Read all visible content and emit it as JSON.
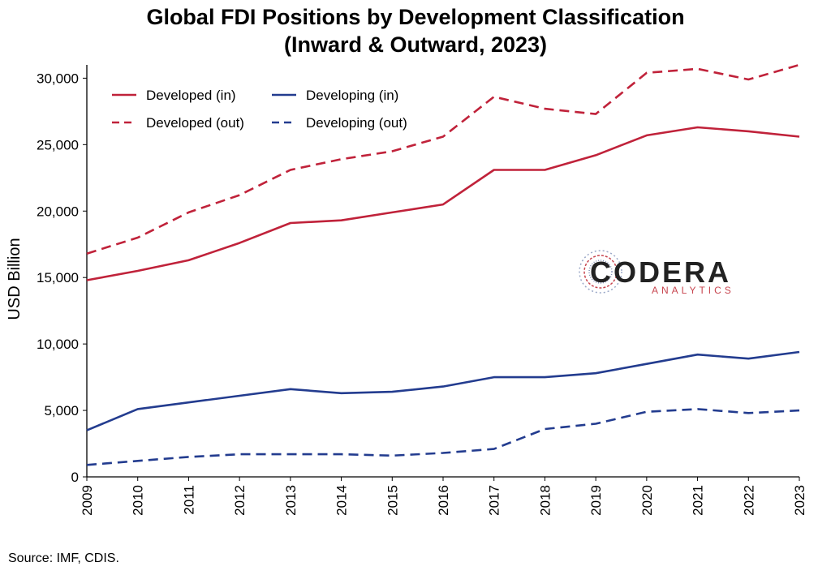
{
  "chart_data": {
    "type": "line",
    "title_lines": [
      "Global FDI Positions by Development Classification",
      "(Inward & Outward, 2023)"
    ],
    "xlabel": "",
    "ylabel": "USD Billion",
    "x": [
      "2009",
      "2010",
      "2011",
      "2012",
      "2013",
      "2014",
      "2015",
      "2016",
      "2017",
      "2018",
      "2019",
      "2020",
      "2021",
      "2022",
      "2023"
    ],
    "ylim": [
      0,
      31000
    ],
    "yticks": [
      0,
      5000,
      10000,
      15000,
      20000,
      25000,
      30000
    ],
    "ytick_labels": [
      "0",
      "5,000",
      "10,000",
      "15,000",
      "20,000",
      "25,000",
      "30,000"
    ],
    "grid": false,
    "legend_position": "top-left",
    "series": [
      {
        "name": "Developed (in)",
        "color": "#c0223a",
        "dash": "solid",
        "values": [
          14800,
          15500,
          16300,
          17600,
          19100,
          19300,
          19900,
          20500,
          23100,
          23100,
          24200,
          25700,
          26300,
          26000,
          25600
        ]
      },
      {
        "name": "Developed (out)",
        "color": "#c0223a",
        "dash": "dashed",
        "values": [
          16800,
          18000,
          19900,
          21200,
          23100,
          23900,
          24500,
          25600,
          28600,
          27700,
          27300,
          30400,
          30700,
          29900,
          31000
        ]
      },
      {
        "name": "Developing (in)",
        "color": "#233c8f",
        "dash": "solid",
        "values": [
          3500,
          5100,
          5600,
          6100,
          6600,
          6300,
          6400,
          6800,
          7500,
          7500,
          7800,
          8500,
          9200,
          8900,
          9400
        ]
      },
      {
        "name": "Developing (out)",
        "color": "#233c8f",
        "dash": "dashed",
        "values": [
          900,
          1200,
          1500,
          1700,
          1700,
          1700,
          1600,
          1800,
          2100,
          3600,
          4000,
          4900,
          5100,
          4800,
          5000
        ]
      }
    ]
  },
  "logo": {
    "main": "CODERA",
    "sub": "ANALYTICS"
  },
  "source": "Source: IMF, CDIS."
}
